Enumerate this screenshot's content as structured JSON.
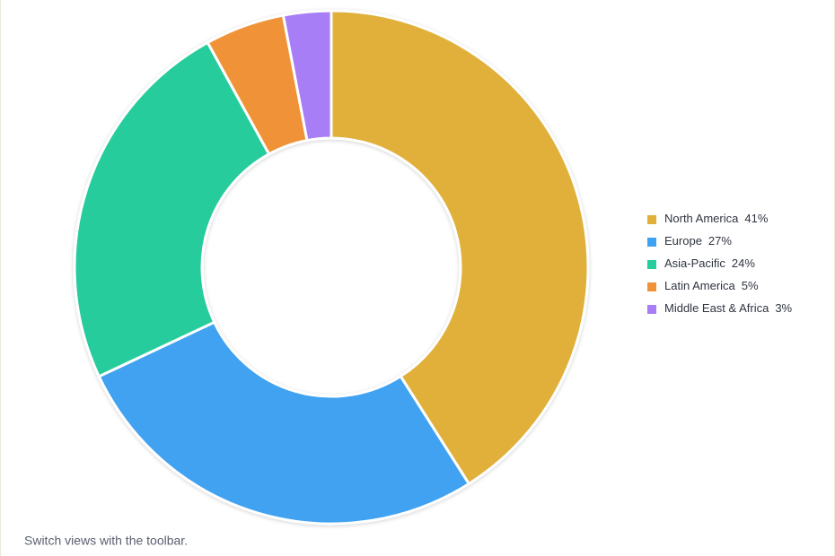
{
  "chart_data": {
    "type": "donut",
    "categories": [
      "North America",
      "Europe",
      "Asia-Pacific",
      "Latin America",
      "Middle East & Africa"
    ],
    "values": [
      41,
      27,
      24,
      5,
      3
    ],
    "value_labels": [
      "41%",
      "27%",
      "24%",
      "5%",
      "3%"
    ],
    "colors": [
      "#e0b03a",
      "#3fa2f0",
      "#25cc9c",
      "#f09338",
      "#a77ef5"
    ],
    "legend": "right"
  },
  "caption": "Switch views with the toolbar."
}
